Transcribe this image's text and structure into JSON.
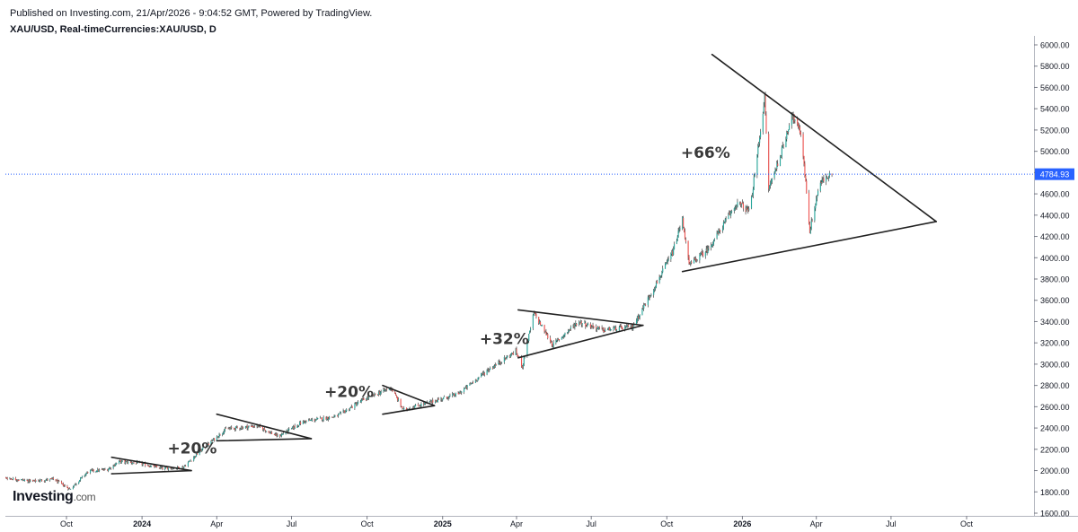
{
  "header": {
    "published": "Published on Investing.com, 21/Apr/2026 - 9:04:52 GMT, Powered by TradingView.",
    "symbol_line": "XAU/USD, Real-timeCurrencies:XAU/USD, D"
  },
  "logo": {
    "brand": "Investing",
    "suffix": ".com"
  },
  "colors": {
    "up": "#26a69a",
    "down": "#ef5350",
    "wick": "#222222",
    "last_price_bg": "#2962ff",
    "trendline": "#222222",
    "text": "#131722"
  },
  "chart_data": {
    "type": "candlestick",
    "title": "XAU/USD, Real-timeCurrencies:XAU/USD, D",
    "ylim": [
      1600,
      6000
    ],
    "y_ticks": [
      "6000.00",
      "5800.00",
      "5600.00",
      "5400.00",
      "5200.00",
      "5000.00",
      "4800.00",
      "4600.00",
      "4400.00",
      "4200.00",
      "4000.00",
      "3800.00",
      "3600.00",
      "3400.00",
      "3200.00",
      "3000.00",
      "2800.00",
      "2600.00",
      "2400.00",
      "2200.00",
      "2000.00",
      "1800.00",
      "1600.00"
    ],
    "x_ticks": [
      {
        "label": "Oct",
        "date": "2023-10-01"
      },
      {
        "label": "2024",
        "date": "2024-01-01"
      },
      {
        "label": "Apr",
        "date": "2024-04-01"
      },
      {
        "label": "Jul",
        "date": "2024-07-01"
      },
      {
        "label": "Oct",
        "date": "2024-10-01"
      },
      {
        "label": "2025",
        "date": "2025-01-01"
      },
      {
        "label": "Apr",
        "date": "2025-04-01"
      },
      {
        "label": "Jul",
        "date": "2025-07-01"
      },
      {
        "label": "Oct",
        "date": "2025-10-01"
      },
      {
        "label": "2026",
        "date": "2026-01-01"
      },
      {
        "label": "Apr",
        "date": "2026-04-01"
      },
      {
        "label": "Jul",
        "date": "2026-07-01"
      },
      {
        "label": "Oct",
        "date": "2026-10-01"
      }
    ],
    "last_price": "4784.93",
    "price_path": [
      {
        "date": "2023-06-01",
        "price": 1965
      },
      {
        "date": "2023-07-15",
        "price": 1935
      },
      {
        "date": "2023-08-20",
        "price": 1900
      },
      {
        "date": "2023-09-15",
        "price": 1920
      },
      {
        "date": "2023-10-05",
        "price": 1825
      },
      {
        "date": "2023-10-28",
        "price": 1995
      },
      {
        "date": "2023-11-20",
        "price": 2010
      },
      {
        "date": "2023-12-04",
        "price": 2085
      },
      {
        "date": "2023-12-28",
        "price": 2070
      },
      {
        "date": "2024-01-25",
        "price": 2020
      },
      {
        "date": "2024-02-20",
        "price": 2030
      },
      {
        "date": "2024-03-10",
        "price": 2170
      },
      {
        "date": "2024-04-12",
        "price": 2390
      },
      {
        "date": "2024-05-20",
        "price": 2420
      },
      {
        "date": "2024-06-15",
        "price": 2320
      },
      {
        "date": "2024-07-15",
        "price": 2460
      },
      {
        "date": "2024-08-25",
        "price": 2510
      },
      {
        "date": "2024-09-25",
        "price": 2660
      },
      {
        "date": "2024-10-30",
        "price": 2780
      },
      {
        "date": "2024-11-14",
        "price": 2570
      },
      {
        "date": "2024-12-15",
        "price": 2640
      },
      {
        "date": "2025-01-20",
        "price": 2720
      },
      {
        "date": "2025-02-24",
        "price": 2940
      },
      {
        "date": "2025-03-31",
        "price": 3120
      },
      {
        "date": "2025-04-08",
        "price": 2980
      },
      {
        "date": "2025-04-22",
        "price": 3480
      },
      {
        "date": "2025-05-15",
        "price": 3180
      },
      {
        "date": "2025-06-15",
        "price": 3400
      },
      {
        "date": "2025-07-15",
        "price": 3320
      },
      {
        "date": "2025-08-20",
        "price": 3350
      },
      {
        "date": "2025-09-10",
        "price": 3640
      },
      {
        "date": "2025-10-08",
        "price": 4050
      },
      {
        "date": "2025-10-20",
        "price": 4360
      },
      {
        "date": "2025-10-28",
        "price": 3930
      },
      {
        "date": "2025-11-20",
        "price": 4080
      },
      {
        "date": "2025-12-26",
        "price": 4520
      },
      {
        "date": "2026-01-10",
        "price": 4430
      },
      {
        "date": "2026-01-28",
        "price": 5500
      },
      {
        "date": "2026-02-02",
        "price": 4650
      },
      {
        "date": "2026-02-20",
        "price": 5050
      },
      {
        "date": "2026-03-02",
        "price": 5350
      },
      {
        "date": "2026-03-14",
        "price": 5150
      },
      {
        "date": "2026-03-24",
        "price": 4250
      },
      {
        "date": "2026-04-05",
        "price": 4700
      },
      {
        "date": "2026-04-20",
        "price": 4785
      }
    ],
    "trendlines": [
      [
        {
          "date": "2023-11-25",
          "price": 2125
        },
        {
          "date": "2024-03-01",
          "price": 2000
        }
      ],
      [
        {
          "date": "2023-11-25",
          "price": 1970
        },
        {
          "date": "2024-03-01",
          "price": 2000
        }
      ],
      [
        {
          "date": "2024-04-01",
          "price": 2530
        },
        {
          "date": "2024-07-25",
          "price": 2300
        }
      ],
      [
        {
          "date": "2024-04-01",
          "price": 2280
        },
        {
          "date": "2024-07-25",
          "price": 2300
        }
      ],
      [
        {
          "date": "2024-10-20",
          "price": 2800
        },
        {
          "date": "2024-12-22",
          "price": 2610
        }
      ],
      [
        {
          "date": "2024-10-20",
          "price": 2530
        },
        {
          "date": "2024-12-22",
          "price": 2610
        }
      ],
      [
        {
          "date": "2025-04-03",
          "price": 3510
        },
        {
          "date": "2025-09-02",
          "price": 3365
        }
      ],
      [
        {
          "date": "2025-04-03",
          "price": 3060
        },
        {
          "date": "2025-09-02",
          "price": 3365
        }
      ],
      [
        {
          "date": "2025-11-25",
          "price": 5910
        },
        {
          "date": "2026-08-25",
          "price": 4340
        }
      ],
      [
        {
          "date": "2025-10-20",
          "price": 3870
        },
        {
          "date": "2026-08-25",
          "price": 4340
        }
      ]
    ],
    "annotations": [
      {
        "text": "+20%",
        "date": "2024-02-01",
        "price": 2160
      },
      {
        "text": "+20%",
        "date": "2024-08-10",
        "price": 2690
      },
      {
        "text": "+32%",
        "date": "2025-02-15",
        "price": 3190
      },
      {
        "text": "+66%",
        "date": "2025-10-18",
        "price": 4940
      }
    ]
  }
}
